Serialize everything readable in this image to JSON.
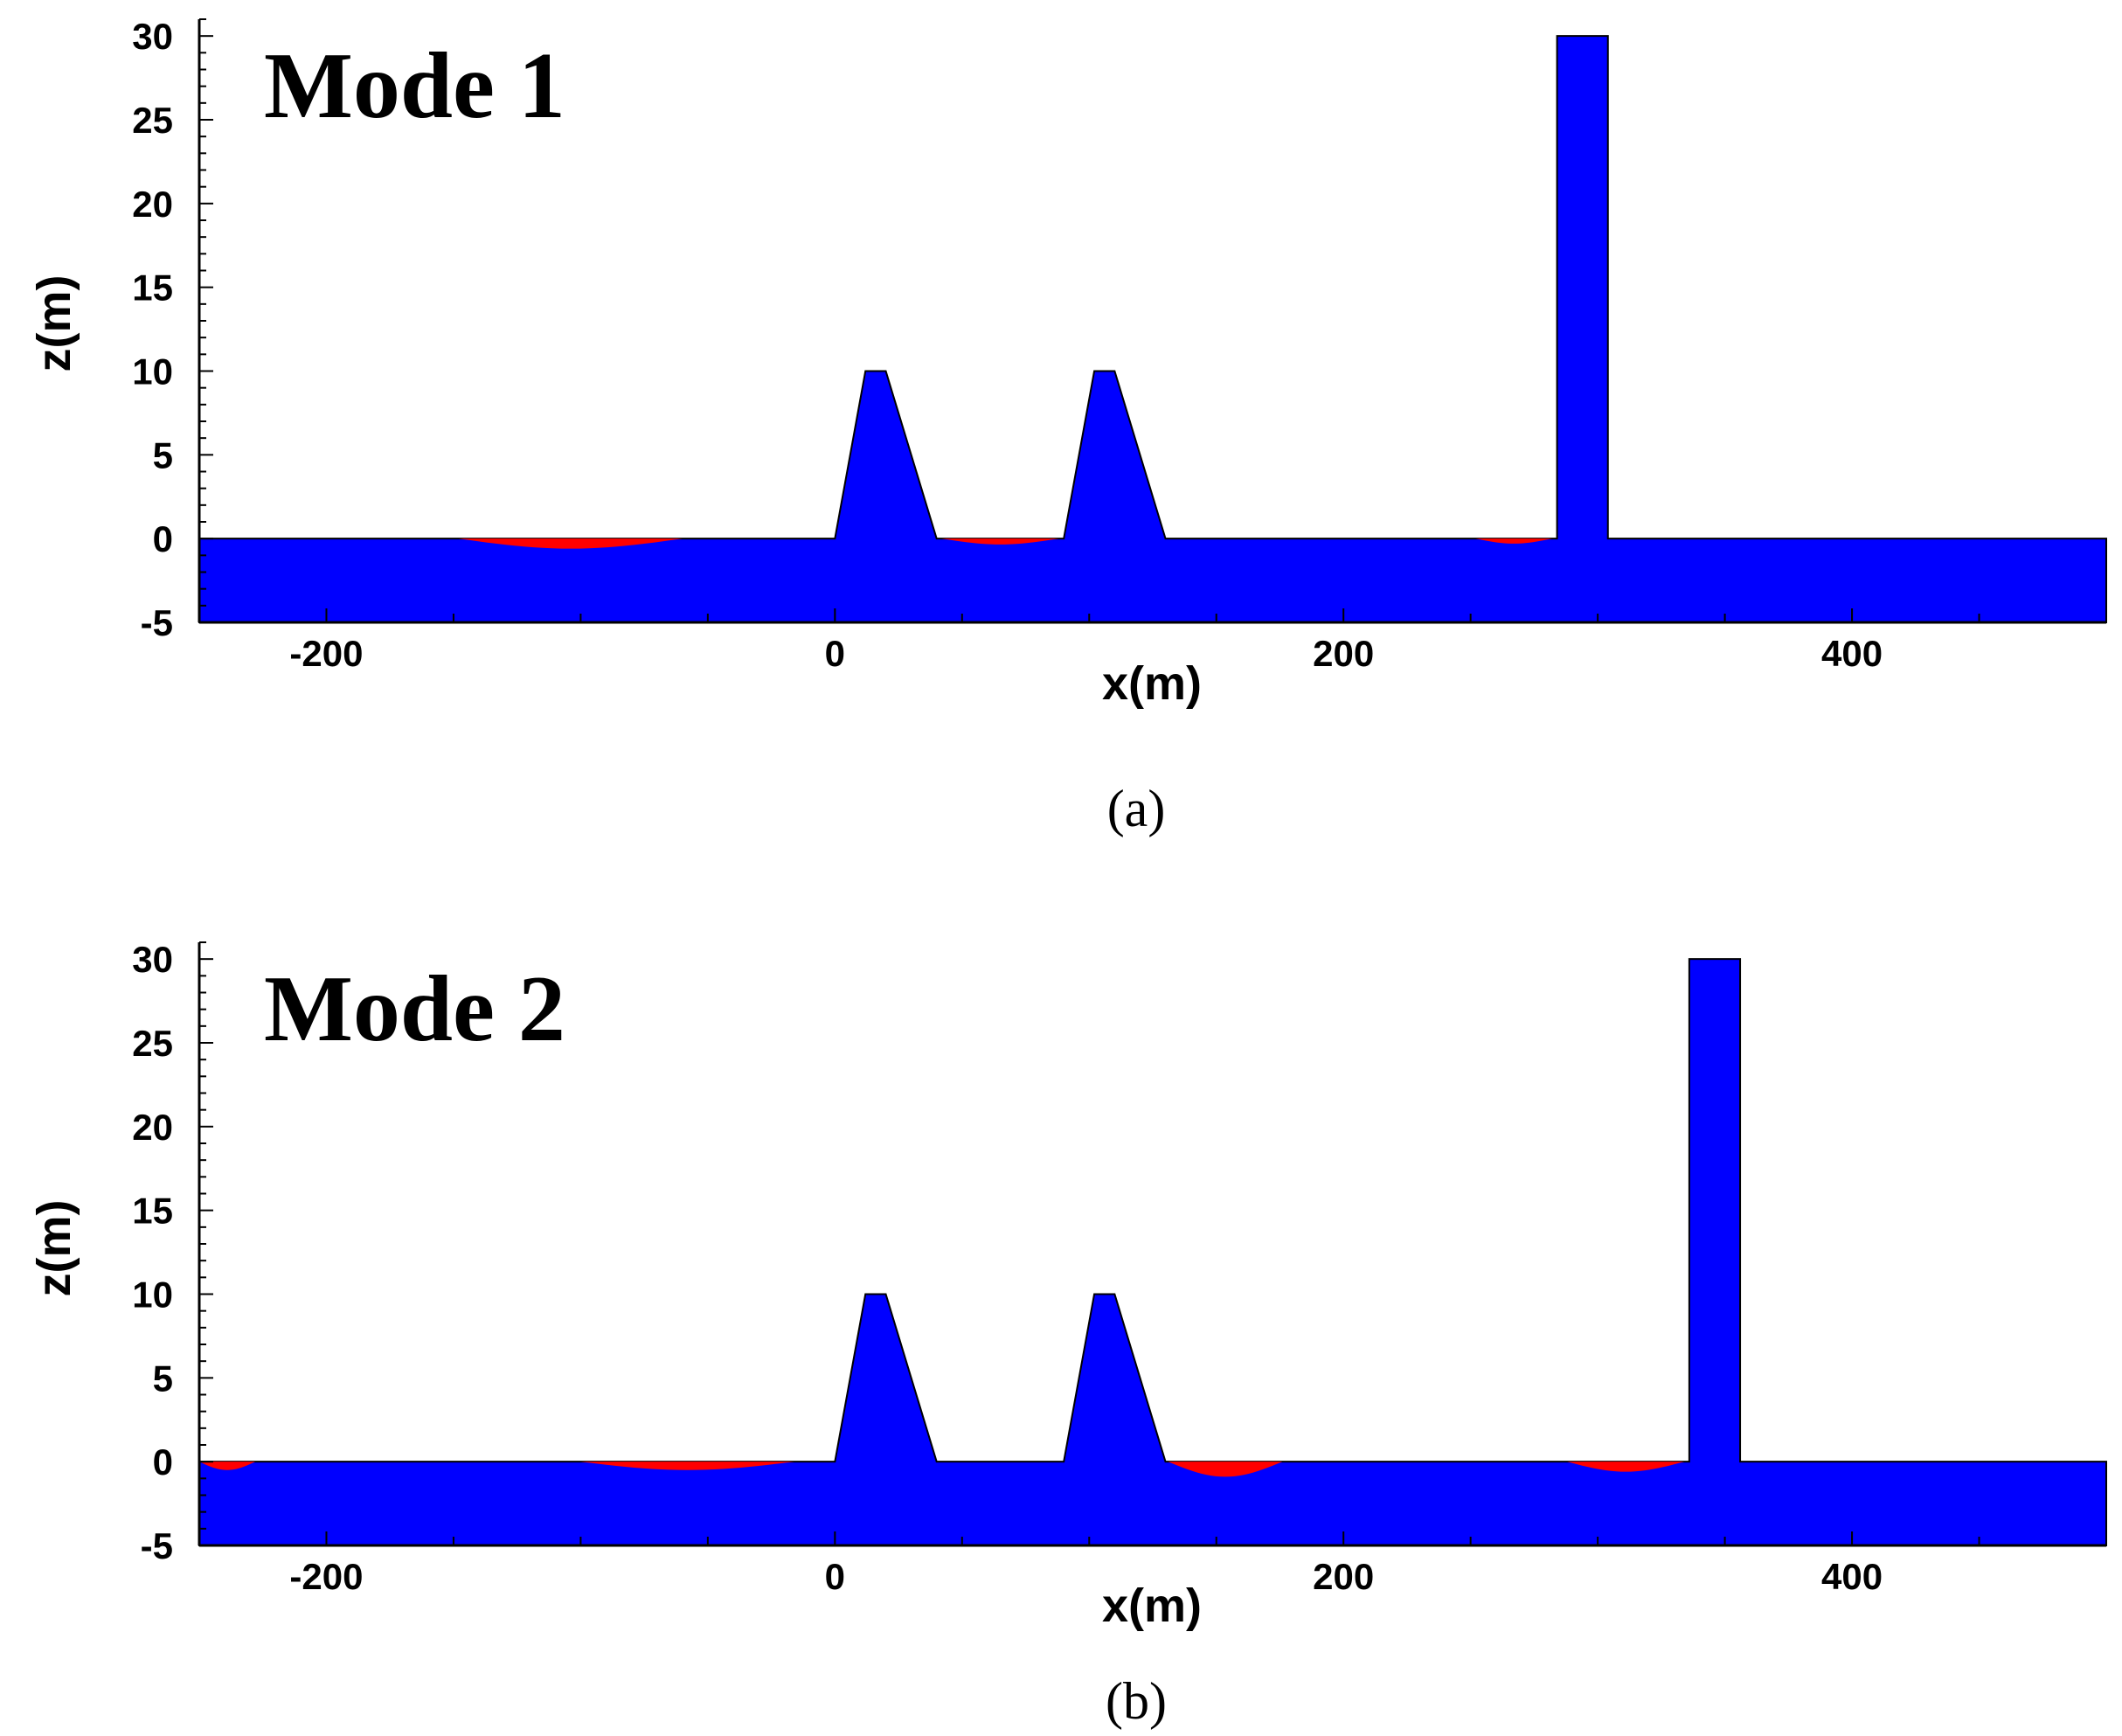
{
  "colors": {
    "structure": "#0000ff",
    "erosion": "#ff0000",
    "axis": "#000000"
  },
  "chart_data": [
    {
      "type": "area",
      "panel_label": "(a)",
      "title": "Mode 1",
      "xlabel": "x(m)",
      "ylabel": "z(m)",
      "xlim": [
        -250,
        500
      ],
      "ylim": [
        -5,
        31
      ],
      "x_ticks": [
        -200,
        0,
        200,
        400
      ],
      "y_ticks": [
        -5,
        0,
        5,
        10,
        15,
        20,
        25,
        30
      ],
      "structure_profile": [
        [
          -250,
          0
        ],
        [
          0,
          0
        ],
        [
          12,
          10
        ],
        [
          20,
          10
        ],
        [
          40,
          0
        ],
        [
          90,
          0
        ],
        [
          102,
          10
        ],
        [
          110,
          10
        ],
        [
          130,
          0
        ],
        [
          284,
          0
        ],
        [
          284,
          30
        ],
        [
          304,
          30
        ],
        [
          304,
          0
        ],
        [
          500,
          0
        ]
      ],
      "erosion_zones": [
        {
          "x_start": -148,
          "x_end": -60,
          "max_depth": 0.6
        },
        {
          "x_start": 42,
          "x_end": 88,
          "max_depth": 0.35
        },
        {
          "x_start": 252,
          "x_end": 282,
          "max_depth": 0.3
        }
      ]
    },
    {
      "type": "area",
      "panel_label": "(b)",
      "title": "Mode 2",
      "xlabel": "x(m)",
      "ylabel": "z(m)",
      "xlim": [
        -250,
        500
      ],
      "ylim": [
        -5,
        31
      ],
      "x_ticks": [
        -200,
        0,
        200,
        400
      ],
      "y_ticks": [
        -5,
        0,
        5,
        10,
        15,
        20,
        25,
        30
      ],
      "structure_profile": [
        [
          -250,
          0
        ],
        [
          0,
          0
        ],
        [
          12,
          10
        ],
        [
          20,
          10
        ],
        [
          40,
          0
        ],
        [
          90,
          0
        ],
        [
          102,
          10
        ],
        [
          110,
          10
        ],
        [
          130,
          0
        ],
        [
          336,
          0
        ],
        [
          336,
          30
        ],
        [
          356,
          30
        ],
        [
          356,
          0
        ],
        [
          500,
          0
        ]
      ],
      "erosion_zones": [
        {
          "x_start": -250,
          "x_end": -228,
          "max_depth": 0.5
        },
        {
          "x_start": -100,
          "x_end": -16,
          "max_depth": 0.5
        },
        {
          "x_start": 131,
          "x_end": 176,
          "max_depth": 0.9
        },
        {
          "x_start": 288,
          "x_end": 334,
          "max_depth": 0.6
        }
      ]
    }
  ]
}
